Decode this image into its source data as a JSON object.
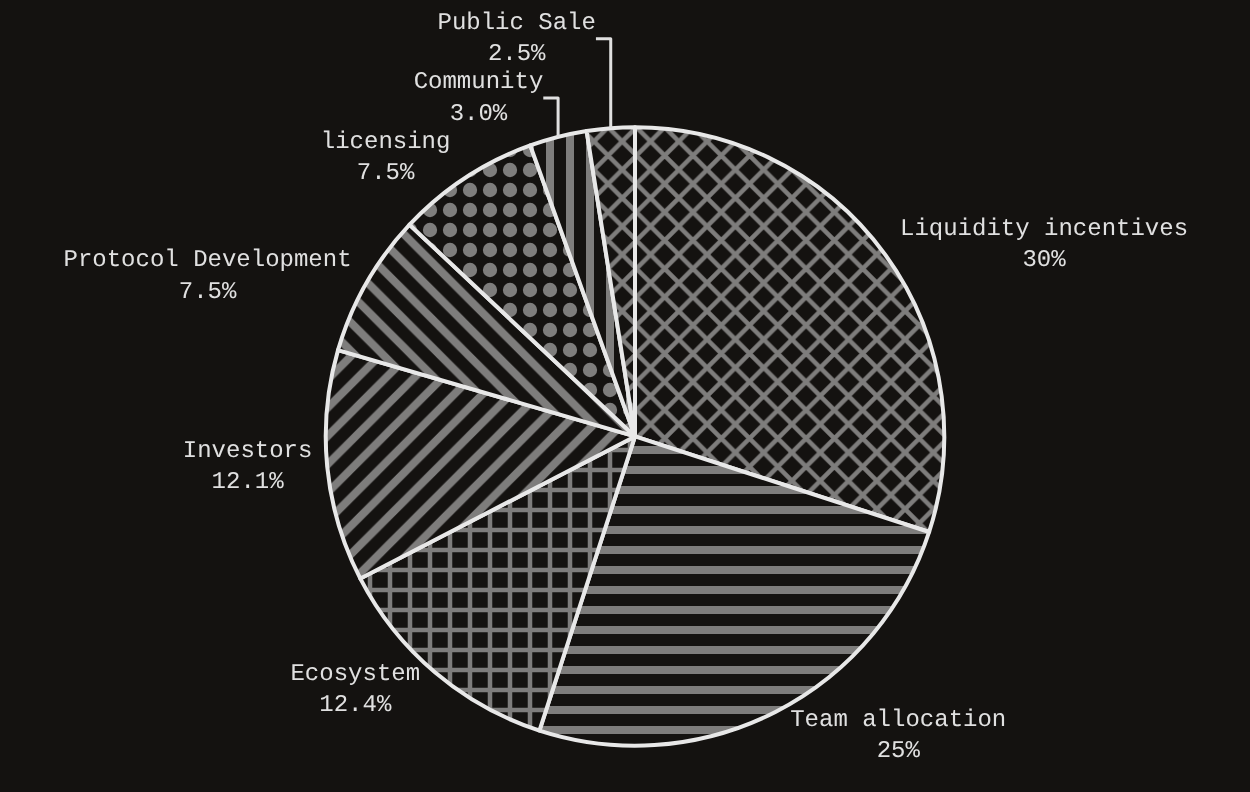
{
  "chart_data": {
    "type": "pie",
    "categories": [
      "Liquidity incentives",
      "Team allocation",
      "Ecosystem",
      "Investors",
      "Protocol Development",
      "licensing",
      "Community",
      "Public Sale"
    ],
    "values": [
      30,
      25,
      12.4,
      12.1,
      7.5,
      7.5,
      3.0,
      2.5
    ],
    "value_labels": [
      "30%",
      "25%",
      "12.4%",
      "12.1%",
      "7.5%",
      "7.5%",
      "3.0%",
      "2.5%"
    ],
    "colors": [
      "#e8e8e8",
      "#e8e8e8",
      "#e8e8e8",
      "#e8e8e8",
      "#e8e8e8",
      "#e8e8e8",
      "#e8e8e8",
      "#e8e8e8"
    ],
    "legend": false
  }
}
